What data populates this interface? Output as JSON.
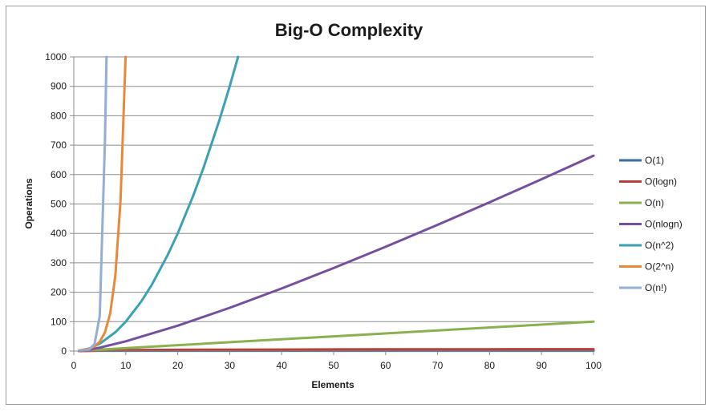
{
  "chart_data": {
    "type": "line",
    "title": "Big-O Complexity",
    "xlabel": "Elements",
    "ylabel": "Operations",
    "xlim": [
      0,
      100
    ],
    "ylim": [
      0,
      1000
    ],
    "x_ticks": [
      0,
      10,
      20,
      30,
      40,
      50,
      60,
      70,
      80,
      90,
      100
    ],
    "y_ticks": [
      0,
      100,
      200,
      300,
      400,
      500,
      600,
      700,
      800,
      900,
      1000
    ],
    "grid": "horizontal",
    "legend_position": "right",
    "series": [
      {
        "name": "O(1)",
        "color": "#3a6b9b",
        "x": [
          1,
          100
        ],
        "y": [
          1,
          1
        ]
      },
      {
        "name": "O(logn)",
        "color": "#b4403c",
        "x": [
          1,
          10,
          20,
          30,
          40,
          50,
          60,
          70,
          80,
          90,
          100
        ],
        "y": [
          0,
          3.3,
          4.3,
          4.9,
          5.3,
          5.6,
          5.9,
          6.1,
          6.3,
          6.5,
          6.6
        ]
      },
      {
        "name": "O(n)",
        "color": "#8cb04e",
        "x": [
          1,
          100
        ],
        "y": [
          1,
          100
        ]
      },
      {
        "name": "O(nlogn)",
        "color": "#7650a0",
        "x": [
          1,
          2,
          5,
          10,
          20,
          30,
          40,
          50,
          60,
          70,
          80,
          90,
          100
        ],
        "y": [
          0,
          2,
          11.6,
          33.2,
          86.4,
          147.2,
          212.9,
          282.2,
          354.4,
          429.1,
          505.8,
          584.3,
          664.4
        ]
      },
      {
        "name": "O(n^2)",
        "color": "#3ca1b4",
        "x": [
          1,
          3,
          5,
          8,
          10,
          13,
          15,
          18,
          20,
          23,
          25,
          28,
          30,
          31.6
        ],
        "y": [
          1,
          9,
          25,
          64,
          100,
          169,
          225,
          324,
          400,
          529,
          625,
          784,
          900,
          1000
        ]
      },
      {
        "name": "O(2^n)",
        "color": "#e8883a",
        "x": [
          1,
          2,
          3,
          4,
          5,
          6,
          7,
          8,
          9,
          9.97
        ],
        "y": [
          2,
          4,
          8,
          16,
          32,
          64,
          128,
          256,
          512,
          1000
        ]
      },
      {
        "name": "O(n!)",
        "color": "#94aed6",
        "x": [
          1,
          2,
          3,
          4,
          5,
          6,
          6.3
        ],
        "y": [
          1,
          2,
          6,
          24,
          120,
          720,
          1000
        ]
      }
    ]
  }
}
